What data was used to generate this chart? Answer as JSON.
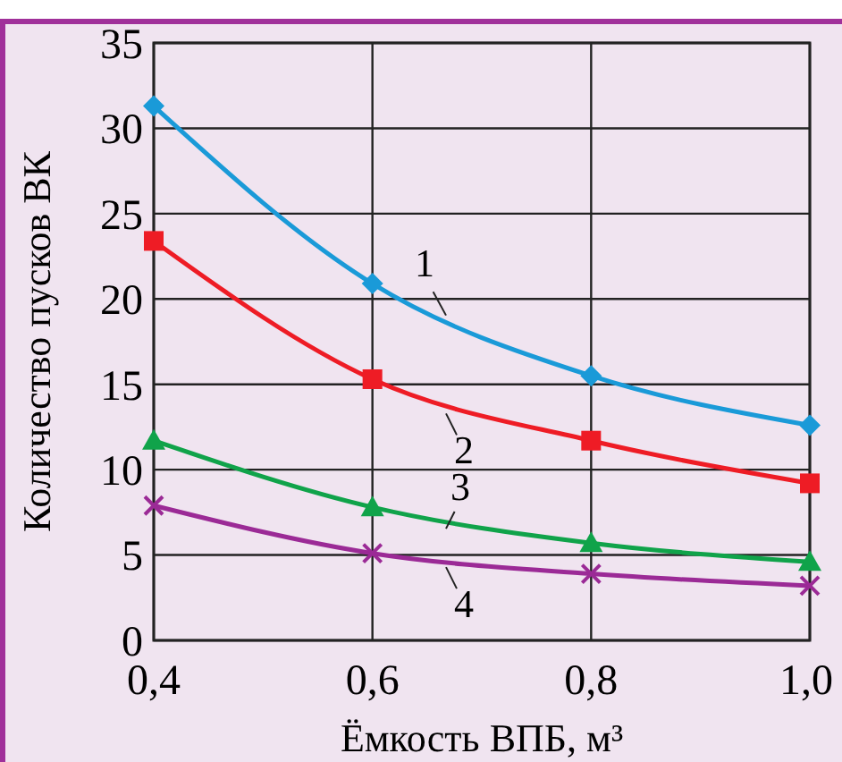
{
  "chart_data": {
    "type": "line",
    "xlabel": "Ёмкость ВПБ, м³",
    "ylabel": "Количество пусков ВК",
    "x": [
      0.4,
      0.6,
      0.8,
      1.0
    ],
    "xlim": [
      0.4,
      1.0
    ],
    "xticks": [
      {
        "value": 0.4,
        "label": "0,4"
      },
      {
        "value": 0.6,
        "label": "0,6"
      },
      {
        "value": 0.8,
        "label": "0,8"
      },
      {
        "value": 1.0,
        "label": "1,0"
      }
    ],
    "ylim": [
      0,
      35
    ],
    "yticks": [
      0,
      5,
      10,
      15,
      20,
      25,
      30,
      35
    ],
    "grid": true,
    "series": [
      {
        "name": "1",
        "color": "#1a9ad8",
        "marker": "diamond",
        "values": [
          31.3,
          20.9,
          15.5,
          12.6
        ]
      },
      {
        "name": "2",
        "color": "#ee1c25",
        "marker": "square",
        "values": [
          23.4,
          15.3,
          11.7,
          9.2
        ]
      },
      {
        "name": "3",
        "color": "#10a34a",
        "marker": "triangle",
        "values": [
          11.7,
          7.8,
          5.7,
          4.6
        ]
      },
      {
        "name": "4",
        "color": "#9b2a96",
        "marker": "cross",
        "values": [
          7.9,
          5.1,
          3.9,
          3.2
        ]
      }
    ]
  }
}
